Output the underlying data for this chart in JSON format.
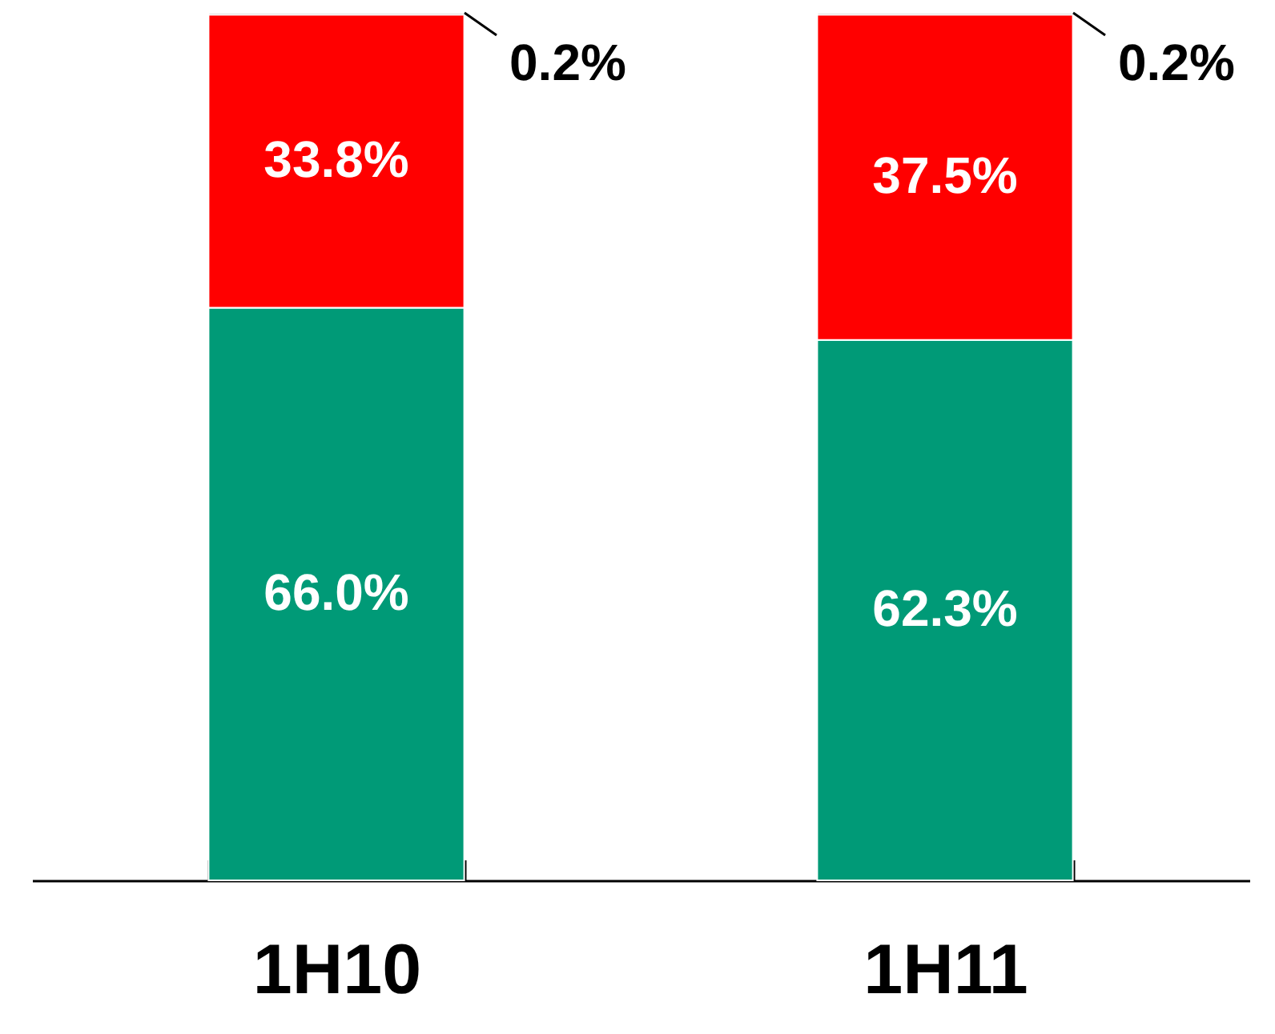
{
  "chart_data": {
    "type": "bar",
    "stacked": true,
    "categories": [
      "1H10",
      "1H11"
    ],
    "series": [
      {
        "color": "#009a77",
        "values": [
          66.0,
          62.3
        ],
        "value_labels": [
          "66.0%",
          "62.3%"
        ]
      },
      {
        "color": "#ff0000",
        "values": [
          33.8,
          37.5
        ],
        "value_labels": [
          "33.8%",
          "37.5%"
        ]
      },
      {
        "color": "#7f7f7f",
        "values": [
          0.2,
          0.2
        ],
        "value_labels": [
          "0.2%",
          "0.2%"
        ]
      }
    ]
  }
}
